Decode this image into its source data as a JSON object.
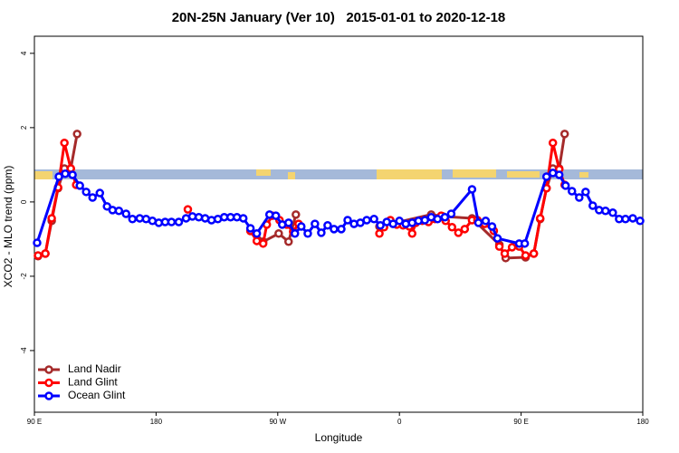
{
  "chart_data": {
    "type": "line",
    "title": "20N-25N January (Ver 10)   2015-01-01 to 2020-12-18",
    "x_label": "Longitude",
    "y_label": "XCO2 - MLO trend (ppm)",
    "xlim": [
      90,
      540
    ],
    "xticks": [
      {
        "value": 90,
        "label": "90 E"
      },
      {
        "value": 180,
        "label": "180"
      },
      {
        "value": 270,
        "label": "90 W"
      },
      {
        "value": 360,
        "label": "0"
      },
      {
        "value": 450,
        "label": "90 E"
      },
      {
        "value": 540,
        "label": "180"
      }
    ],
    "ylim": [
      -5.66,
      4.46
    ],
    "yticks": [
      -4,
      -2,
      0,
      2,
      4
    ],
    "legend": "bottom-left",
    "series": [
      {
        "name": "Land Nadir",
        "color": "#a52a2a",
        "x": [
          92.7,
          98.1,
          102.8,
          107.5,
          112.2,
          116.9,
          121.6,
          180,
          249.8,
          255.2,
          259.2,
          270.7,
          278.0,
          283.4,
          315,
          345.2,
          383.5,
          392.2,
          413.7,
          433.9,
          438.6,
          453.3,
          459.4,
          464.1,
          468.8,
          473.5,
          478.2,
          482.2
        ],
        "values": [
          -1.46,
          -1.39,
          -0.51,
          0.37,
          0.9,
          0.9,
          1.83,
          null,
          -0.78,
          -1.02,
          -1.07,
          -0.85,
          -1.07,
          -0.34,
          null,
          -0.66,
          -0.34,
          -0.39,
          -0.44,
          -1.15,
          -1.51,
          -1.49,
          -1.39,
          -0.46,
          0.37,
          0.9,
          0.9,
          1.83
        ]
      },
      {
        "name": "Land Glint",
        "color": "#ff0000",
        "x": [
          92.7,
          98.1,
          102.8,
          107.5,
          112.2,
          116.9,
          120.9,
          160,
          203.5,
          225,
          249.8,
          254.5,
          259.2,
          261.9,
          266.0,
          271.3,
          276.7,
          281.4,
          285.4,
          315,
          345.2,
          348.6,
          353.3,
          358.0,
          362.7,
          367.4,
          369.4,
          372.1,
          376.8,
          381.5,
          386.2,
          390.9,
          394.2,
          398.9,
          403.6,
          408.3,
          413.7,
          417.7,
          423.1,
          429.8,
          433.9,
          437.9,
          443.3,
          448.6,
          453.3,
          459.4,
          464.1,
          468.8,
          473.5,
          478.2,
          482.2
        ],
        "values": [
          -1.44,
          -1.39,
          -0.44,
          0.39,
          1.59,
          0.9,
          0.46,
          null,
          -0.2,
          null,
          -0.78,
          -1.05,
          -1.12,
          -0.61,
          -0.37,
          -0.49,
          -0.61,
          -0.8,
          -0.59,
          null,
          -0.85,
          -0.68,
          -0.49,
          -0.61,
          -0.63,
          -0.66,
          -0.85,
          -0.56,
          -0.51,
          -0.54,
          -0.46,
          -0.37,
          -0.51,
          -0.68,
          -0.83,
          -0.73,
          -0.49,
          -0.49,
          -0.59,
          -0.78,
          -1.2,
          -1.39,
          -1.22,
          -1.2,
          -1.44,
          -1.39,
          -0.44,
          0.37,
          1.59,
          0.88,
          0.46
        ]
      },
      {
        "name": "Ocean Glint",
        "color": "#0000ff",
        "x": [
          92.0,
          108.1,
          112.8,
          118.2,
          123.6,
          128.3,
          133.0,
          138.4,
          143.7,
          147.8,
          152.5,
          157.8,
          162.5,
          167.9,
          172.6,
          177.3,
          182.0,
          186.7,
          191.4,
          196.8,
          202.2,
          206.9,
          211.6,
          216.3,
          221.0,
          225.7,
          230.4,
          235.1,
          239.8,
          244.5,
          249.8,
          254.5,
          263.9,
          268.6,
          273.3,
          278.0,
          282.7,
          287.4,
          292.2,
          297.5,
          302.2,
          306.9,
          311.6,
          317.0,
          321.7,
          326.4,
          331.1,
          335.8,
          341.2,
          345.9,
          350.6,
          355.3,
          360.0,
          364.7,
          369.4,
          374.1,
          378.8,
          383.5,
          388.2,
          393.6,
          398.3,
          413.7,
          418.4,
          423.8,
          428.5,
          432.5,
          448.6,
          452.7,
          468.8,
          473.5,
          478.2,
          482.9,
          487.6,
          493.0,
          497.7,
          503.0,
          507.7,
          512.4,
          517.8,
          522.5,
          527.2,
          532.6,
          538.0
        ],
        "values": [
          -1.1,
          0.68,
          0.76,
          0.73,
          0.44,
          0.27,
          0.12,
          0.24,
          -0.12,
          -0.22,
          -0.24,
          -0.32,
          -0.46,
          -0.44,
          -0.46,
          -0.51,
          -0.56,
          -0.54,
          -0.54,
          -0.54,
          -0.44,
          -0.39,
          -0.41,
          -0.44,
          -0.49,
          -0.46,
          -0.41,
          -0.41,
          -0.41,
          -0.44,
          -0.71,
          -0.85,
          -0.34,
          -0.37,
          -0.61,
          -0.56,
          -0.85,
          -0.66,
          -0.85,
          -0.59,
          -0.83,
          -0.63,
          -0.73,
          -0.73,
          -0.49,
          -0.59,
          -0.56,
          -0.49,
          -0.46,
          -0.63,
          -0.54,
          -0.59,
          -0.51,
          -0.59,
          -0.56,
          -0.51,
          -0.49,
          -0.41,
          -0.46,
          -0.41,
          -0.32,
          0.34,
          -0.56,
          -0.51,
          -0.66,
          -0.98,
          -1.12,
          -1.12,
          0.68,
          0.78,
          0.73,
          0.44,
          0.29,
          0.12,
          0.27,
          -0.1,
          -0.22,
          -0.24,
          -0.29,
          -0.46,
          -0.46,
          -0.44,
          -0.51
        ]
      }
    ]
  }
}
